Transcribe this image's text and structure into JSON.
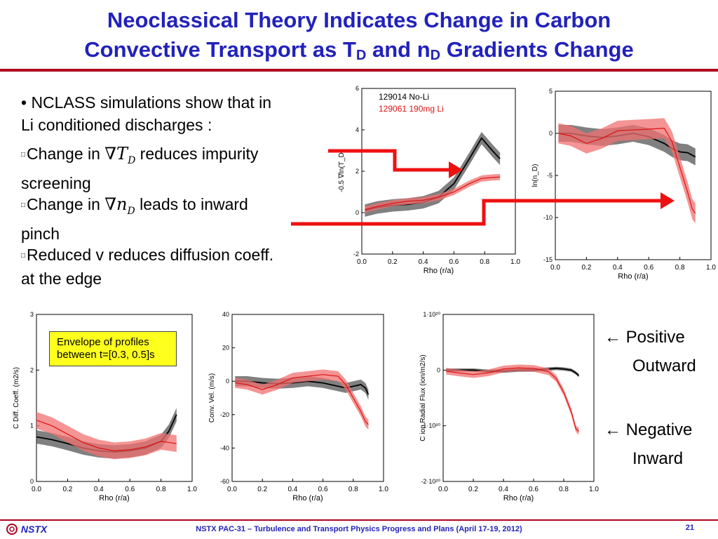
{
  "slide": {
    "title_line1": "Neoclassical Theory Indicates Change in Carbon",
    "title_line2_a": "Convective Transport as T",
    "title_sub_d1": "D",
    "title_line2_b": " and n",
    "title_sub_d2": "D",
    "title_line2_c": " Gradients Change"
  },
  "bullets": {
    "b1_line1": "• NCLASS simulations show that in",
    "b1_line2": "Li conditioned discharges :",
    "square": "□",
    "b2_a": "Change in ",
    "b2_math": "∇T",
    "b2_math_sub": "D",
    "b2_b": "  reduces  impurity",
    "b2_line2": "screening",
    "b3_a": "Change in ",
    "b3_math": "∇n",
    "b3_math_sub": "D",
    "b3_b": " leads to inward",
    "b3_line2": "pinch",
    "b4_line1": "Reduced v reduces diffusion coeff.",
    "b4_line2": "at the edge"
  },
  "legend_box": {
    "line1": "Envelope of profiles",
    "line2": "between t=[0.3, 0.5]s"
  },
  "annotations": {
    "positive_arrow": "←",
    "positive": "Positive",
    "outward": "Outward",
    "negative_arrow": "←",
    "negative": "Negative",
    "inward": "Inward"
  },
  "footer": {
    "logo": "NSTX",
    "text": "NSTX PAC-31 – Turbulence and Transport Physics Progress and Plans (April 17-19, 2012)",
    "page": "21"
  },
  "colors": {
    "title": "#2222bb",
    "rule": "#b00020",
    "arrow": "#ee1111",
    "no_li_line": "#000000",
    "no_li_band": "#555555",
    "li_line": "#dd1111",
    "li_band": "#f07070"
  },
  "chart_data": [
    {
      "type": "line",
      "id": "gradT",
      "xlabel": "Rho (r/a)",
      "ylabel": "-0.5 ∇ln(T_D)",
      "xlim": [
        0,
        1
      ],
      "ylim": [
        -2,
        6
      ],
      "xticks": [
        "0.0",
        "0.2",
        "0.4",
        "0.6",
        "0.8",
        "1.0"
      ],
      "yticks": [
        "-2",
        "0",
        "2",
        "4",
        "6"
      ],
      "legend": [
        "129014 No-Li",
        "129061 190mg Li"
      ],
      "x": [
        0.02,
        0.1,
        0.2,
        0.3,
        0.4,
        0.5,
        0.6,
        0.7,
        0.78,
        0.85,
        0.9
      ],
      "series": [
        {
          "name": "129014 No-Li",
          "values": [
            0.1,
            0.25,
            0.35,
            0.4,
            0.5,
            0.75,
            1.4,
            2.6,
            3.6,
            3.0,
            2.6
          ],
          "band": 0.3
        },
        {
          "name": "129061 190mg Li",
          "values": [
            0.15,
            0.3,
            0.45,
            0.55,
            0.6,
            0.75,
            1.0,
            1.4,
            1.65,
            1.7,
            1.72
          ],
          "band": 0.15
        }
      ]
    },
    {
      "type": "line",
      "id": "gradn",
      "xlabel": "Rho (r/a)",
      "ylabel": "ln(n_D)",
      "xlim": [
        0,
        1
      ],
      "ylim": [
        -15,
        5
      ],
      "xticks": [
        "0.0",
        "0.2",
        "0.4",
        "0.6",
        "0.8",
        "1.0"
      ],
      "yticks": [
        "-15",
        "-10",
        "-5",
        "0",
        "5"
      ],
      "x": [
        0.02,
        0.1,
        0.2,
        0.3,
        0.4,
        0.5,
        0.6,
        0.7,
        0.75,
        0.8,
        0.85,
        0.88,
        0.9
      ],
      "series": [
        {
          "name": "129014 No-Li",
          "values": [
            0,
            0,
            -0.3,
            -0.5,
            -0.3,
            0,
            -0.4,
            -1.2,
            -1.8,
            -2.2,
            -2.3,
            -2.6,
            -2.8
          ],
          "band": 1.0
        },
        {
          "name": "129061 190mg Li",
          "values": [
            0,
            -0.3,
            -1.2,
            -0.6,
            0.3,
            0.4,
            0.5,
            0.6,
            -1,
            -4,
            -7,
            -9,
            -9.5
          ],
          "band": 1.2
        }
      ]
    },
    {
      "type": "line",
      "id": "diff",
      "xlabel": "Rho (r/a)",
      "ylabel": "C Diff. Coeff. (m2/s)",
      "xlim": [
        0,
        1
      ],
      "ylim": [
        0,
        3
      ],
      "xticks": [
        "0.0",
        "0.2",
        "0.4",
        "0.6",
        "0.8",
        "1.0"
      ],
      "yticks": [
        "0",
        "1",
        "2",
        "3"
      ],
      "x": [
        0.0,
        0.1,
        0.2,
        0.3,
        0.4,
        0.5,
        0.6,
        0.7,
        0.8,
        0.85,
        0.9
      ],
      "series": [
        {
          "name": "129014 No-Li",
          "values": [
            0.8,
            0.75,
            0.68,
            0.6,
            0.55,
            0.53,
            0.55,
            0.6,
            0.72,
            0.9,
            1.2
          ],
          "band": 0.12
        },
        {
          "name": "129061 190mg Li",
          "values": [
            1.1,
            1.0,
            0.85,
            0.7,
            0.6,
            0.55,
            0.57,
            0.62,
            0.72,
            0.7,
            0.68
          ],
          "band": 0.15
        }
      ]
    },
    {
      "type": "line",
      "id": "vel",
      "xlabel": "Rho (r/a)",
      "ylabel": "Conv. Vel. (m/s)",
      "xlim": [
        0,
        1
      ],
      "ylim": [
        -60,
        40
      ],
      "xticks": [
        "0.0",
        "0.2",
        "0.4",
        "0.6",
        "0.8",
        "1.0"
      ],
      "yticks": [
        "-60",
        "-40",
        "-20",
        "0",
        "20",
        "40"
      ],
      "x": [
        0.02,
        0.1,
        0.2,
        0.3,
        0.4,
        0.5,
        0.6,
        0.7,
        0.75,
        0.8,
        0.85,
        0.88,
        0.9
      ],
      "series": [
        {
          "name": "129014 No-Li",
          "values": [
            0,
            0,
            -1,
            -1.5,
            -1,
            0,
            -1,
            -3,
            -4,
            -3,
            -2,
            -4,
            -8
          ],
          "band": 3
        },
        {
          "name": "129061 190mg Li",
          "values": [
            -1,
            -2,
            -5,
            -2,
            2,
            3,
            4,
            3,
            -2,
            -10,
            -18,
            -24,
            -26
          ],
          "band": 3
        }
      ]
    },
    {
      "type": "line",
      "id": "flux",
      "xlabel": "Rho (r/a)",
      "ylabel": "C ion Radial Flux (ion/m2/s)",
      "xlim": [
        0,
        1
      ],
      "ylim": [
        -2,
        1
      ],
      "xticks": [
        "0.0",
        "0.2",
        "0.4",
        "0.6",
        "0.8",
        "1.0"
      ],
      "yticks": [
        "-2·10²⁰",
        "-1·10²⁰",
        "0",
        "1·10²⁰"
      ],
      "x": [
        0.02,
        0.1,
        0.2,
        0.3,
        0.4,
        0.5,
        0.6,
        0.7,
        0.75,
        0.8,
        0.85,
        0.88,
        0.9
      ],
      "series": [
        {
          "name": "129014 No-Li",
          "values": [
            0,
            0,
            0,
            -0.02,
            -0.02,
            0,
            0,
            0.02,
            0.03,
            0.02,
            0,
            -0.05,
            -0.1
          ],
          "band": 0.03
        },
        {
          "name": "129061 190mg Li",
          "values": [
            -0.02,
            -0.05,
            -0.08,
            -0.05,
            0.02,
            0.04,
            0.03,
            -0.03,
            -0.15,
            -0.4,
            -0.75,
            -1.05,
            -1.1
          ],
          "band": 0.06
        }
      ]
    }
  ]
}
